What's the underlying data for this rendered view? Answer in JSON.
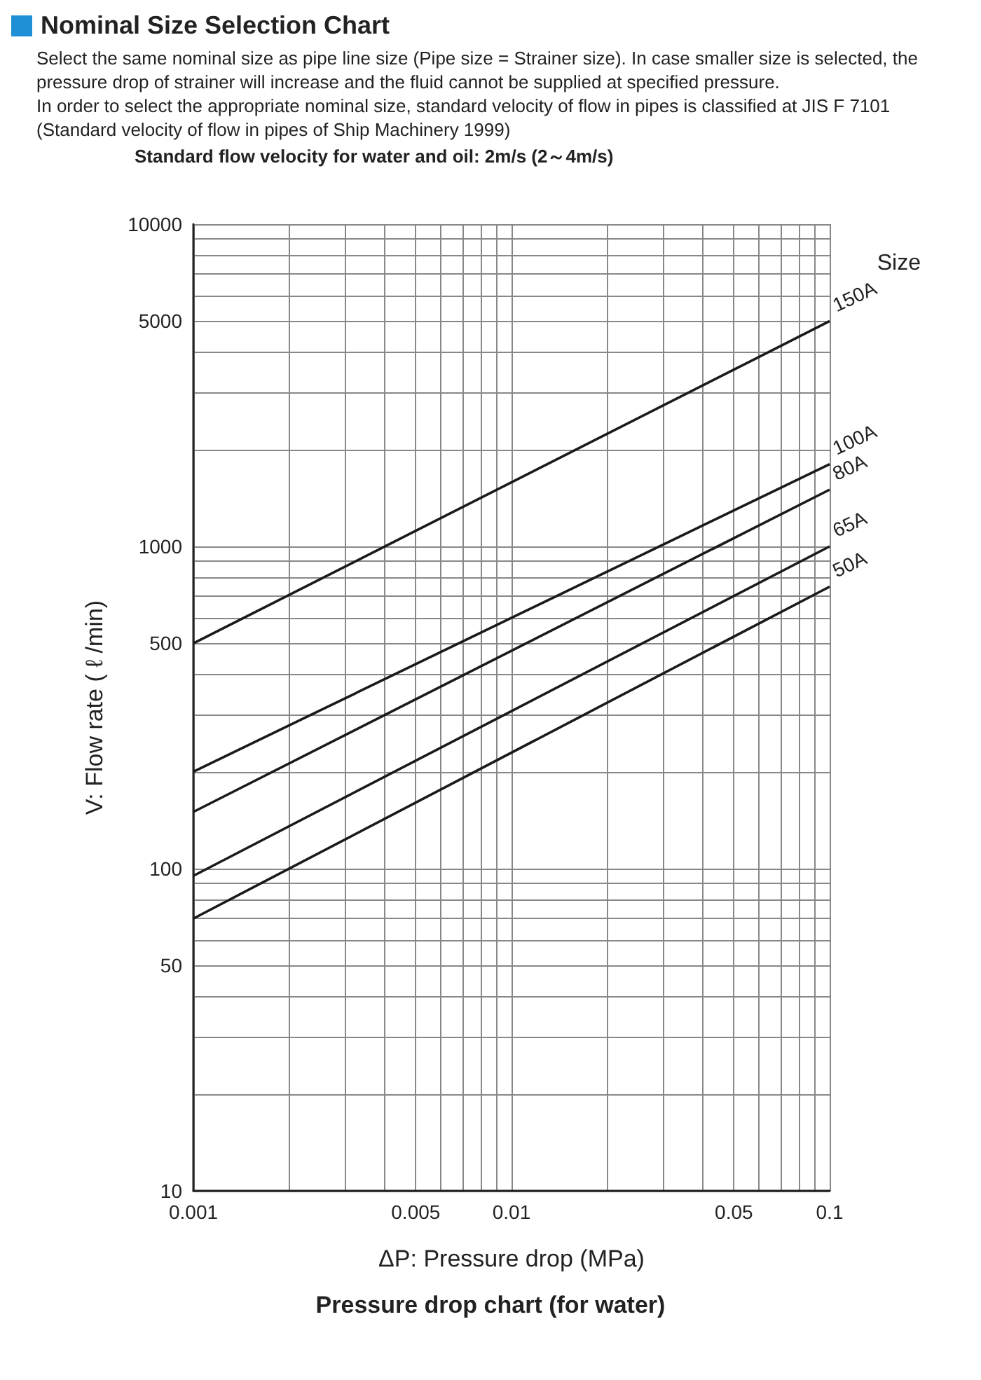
{
  "chart_data": {
    "type": "line",
    "title": "Nominal Size Selection Chart",
    "annotations": [
      "Select the same nominal size as pipe line size (Pipe size = Strainer size). In case smaller size is selected, the pressure drop of strainer will increase and the fluid cannot be supplied at specified pressure.",
      "In order to select the appropriate nominal size, standard velocity of flow in pipes is classified at JIS F 7101 (Standard velocity of flow in pipes of Ship Machinery 1999)",
      "Pressure drop chart (for water)"
    ],
    "subtitle": "Standard flow velocity for water and oil: 2m/s (2～4m/s)",
    "xlabel": "ΔP: Pressure drop (MPa)",
    "ylabel": "V: Flow rate ( ℓ /min)",
    "legend_title": "Size",
    "log": "xy",
    "grid": true,
    "legend": false,
    "marker": "none",
    "line_style": "solid",
    "x": [
      0.001,
      0.1
    ],
    "series": [
      {
        "name": "150A",
        "color": "#1a1a1a",
        "values": [
          500,
          5000
        ]
      },
      {
        "name": "100A",
        "color": "#1a1a1a",
        "values": [
          200,
          1800
        ]
      },
      {
        "name": "80A",
        "color": "#1a1a1a",
        "values": [
          150,
          1500
        ]
      },
      {
        "name": "65A",
        "color": "#1a1a1a",
        "values": [
          95,
          1000
        ]
      },
      {
        "name": "50A",
        "color": "#1a1a1a",
        "values": [
          70,
          750
        ]
      }
    ],
    "xlim": [
      0.001,
      0.1
    ],
    "xticks": [
      0.001,
      {
        "value": 0.002,
        "label": null
      },
      {
        "value": 0.003,
        "label": null
      },
      {
        "value": 0.004,
        "label": null
      },
      0.005,
      {
        "value": 0.006,
        "label": null
      },
      {
        "value": 0.007,
        "label": null
      },
      {
        "value": 0.008,
        "label": null
      },
      {
        "value": 0.009,
        "label": null
      },
      0.01,
      {
        "value": 0.02,
        "label": null
      },
      {
        "value": 0.03,
        "label": null
      },
      {
        "value": 0.04,
        "label": null
      },
      0.05,
      {
        "value": 0.06,
        "label": null
      },
      {
        "value": 0.07,
        "label": null
      },
      {
        "value": 0.08,
        "label": null
      },
      {
        "value": 0.09,
        "label": null
      },
      0.1
    ],
    "ylim": [
      10,
      10000
    ],
    "yticks": [
      10,
      {
        "value": 20,
        "label": null
      },
      {
        "value": 30,
        "label": null
      },
      {
        "value": 40,
        "label": null
      },
      50,
      {
        "value": 60,
        "label": null
      },
      {
        "value": 70,
        "label": null
      },
      {
        "value": 80,
        "label": null
      },
      {
        "value": 90,
        "label": null
      },
      100,
      {
        "value": 200,
        "label": null
      },
      {
        "value": 300,
        "label": null
      },
      {
        "value": 400,
        "label": null
      },
      500,
      {
        "value": 600,
        "label": null
      },
      {
        "value": 700,
        "label": null
      },
      {
        "value": 800,
        "label": null
      },
      {
        "value": 900,
        "label": null
      },
      1000,
      {
        "value": 2000,
        "label": null
      },
      {
        "value": 3000,
        "label": null
      },
      {
        "value": 4000,
        "label": null
      },
      5000,
      {
        "value": 6000,
        "label": null
      },
      {
        "value": 7000,
        "label": null
      },
      {
        "value": 8000,
        "label": null
      },
      {
        "value": 9000,
        "label": null
      },
      10000
    ]
  }
}
